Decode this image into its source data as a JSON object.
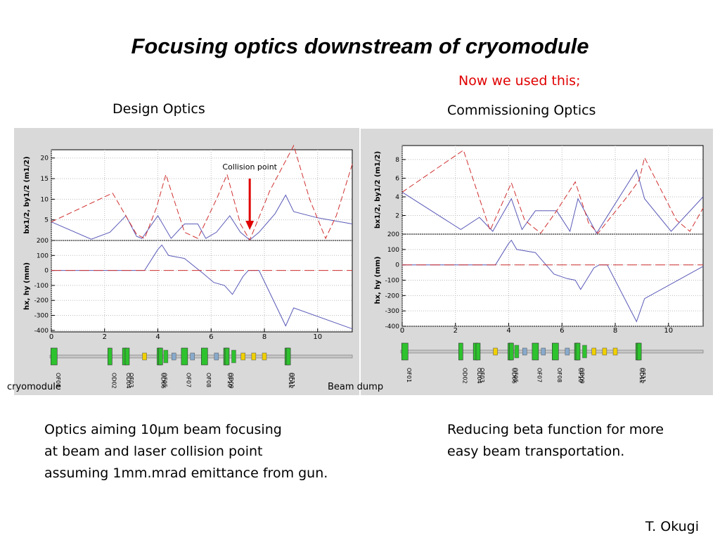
{
  "title": "Focusing optics downstream of cryomodule",
  "note": "Now we used this;",
  "design_label": "Design Optics",
  "commissioning_label": "Commissioning Optics",
  "collision_label": "Collision point",
  "cryomodule_label": "cryomodule",
  "beam_dump_label": "Beam dump",
  "left_text": [
    "Optics aiming 10µm beam focusing",
    "at beam and laser collision point",
    "assuming 1mm.mrad emittance from gun."
  ],
  "right_text": [
    "Reducing beta function for more",
    "easy beam transportation."
  ],
  "author": "T. Okugi",
  "colors": {
    "beta_x": "#5a5ab8",
    "beta_y_dashed": "#d03030",
    "arrow": "#e00000",
    "quad": "#2ec22e",
    "sext": "#f0d000",
    "bpm": "#88aacc"
  },
  "chart_data": [
    {
      "type": "line",
      "name": "Design Optics",
      "xlim": [
        0,
        11.3
      ],
      "xticks": [
        "0",
        "2",
        "4",
        "6",
        "8",
        "10"
      ],
      "grid": true,
      "top": {
        "ylabel": "bx1/2, by1/2 (m1/2)",
        "ylim": [
          0,
          22
        ],
        "yticks": [
          "5",
          "10",
          "15",
          "20"
        ],
        "series": [
          {
            "style": "solid",
            "points": [
              [
                0,
                4.5
              ],
              [
                1.5,
                0.3
              ],
              [
                2.2,
                2
              ],
              [
                2.8,
                6
              ],
              [
                3.2,
                1
              ],
              [
                3.4,
                0.5
              ],
              [
                4,
                6
              ],
              [
                4.5,
                0.5
              ],
              [
                5,
                4
              ],
              [
                5.5,
                4
              ],
              [
                5.8,
                0.5
              ],
              [
                6.2,
                2
              ],
              [
                6.7,
                6
              ],
              [
                7.1,
                2
              ],
              [
                7.45,
                0.1
              ],
              [
                7.8,
                2
              ],
              [
                8.4,
                6.5
              ],
              [
                8.8,
                11
              ],
              [
                9.1,
                7
              ],
              [
                10,
                5.5
              ],
              [
                11.3,
                4
              ]
            ]
          },
          {
            "style": "dashed",
            "points": [
              [
                0,
                4.5
              ],
              [
                2.3,
                11.5
              ],
              [
                3.2,
                1.5
              ],
              [
                3.5,
                0.5
              ],
              [
                3.95,
                8
              ],
              [
                4.3,
                16
              ],
              [
                5,
                2
              ],
              [
                5.5,
                0.5
              ],
              [
                6.2,
                10
              ],
              [
                6.6,
                16
              ],
              [
                7.1,
                4
              ],
              [
                7.45,
                0.1
              ],
              [
                8.2,
                12
              ],
              [
                9.1,
                23
              ],
              [
                9.7,
                10
              ],
              [
                10.3,
                0.5
              ],
              [
                10.7,
                6
              ],
              [
                11.3,
                18.5
              ]
            ]
          }
        ]
      },
      "bottom": {
        "ylabel": "hx, hy (mm)",
        "ylim": [
          -410,
          200
        ],
        "yticks": [
          "200",
          "100",
          "0",
          "-100",
          "-200",
          "-300",
          "-400"
        ],
        "series": [
          {
            "style": "solid",
            "points": [
              [
                0,
                0
              ],
              [
                3.5,
                0
              ],
              [
                4,
                140
              ],
              [
                4.15,
                170
              ],
              [
                4.4,
                100
              ],
              [
                5,
                80
              ],
              [
                5.7,
                -20
              ],
              [
                6.1,
                -80
              ],
              [
                6.5,
                -100
              ],
              [
                6.8,
                -160
              ],
              [
                7.2,
                -40
              ],
              [
                7.4,
                0
              ],
              [
                7.8,
                0
              ],
              [
                8.8,
                -370
              ],
              [
                9.1,
                -250
              ],
              [
                11.3,
                -390
              ]
            ]
          },
          {
            "style": "dashed",
            "points": [
              [
                0,
                0
              ],
              [
                11.3,
                0
              ]
            ]
          }
        ]
      },
      "elements": [
        "OF01",
        "OD02",
        "OD04",
        "OF03",
        "OD06",
        "OF05",
        "OF07",
        "OF08",
        "OF10",
        "OD09",
        "OD12",
        "OF11"
      ]
    },
    {
      "type": "line",
      "name": "Commissioning Optics",
      "xlim": [
        0,
        11.3
      ],
      "xticks": [
        "0",
        "2",
        "4",
        "6",
        "8",
        "10"
      ],
      "grid": true,
      "top": {
        "ylabel": "bx1/2, by1/2 (m1/2)",
        "ylim": [
          0,
          9.5
        ],
        "yticks": [
          "2",
          "4",
          "6",
          "8"
        ],
        "series": [
          {
            "style": "solid",
            "points": [
              [
                0,
                4.5
              ],
              [
                2.2,
                0.5
              ],
              [
                2.9,
                1.8
              ],
              [
                3.4,
                0.3
              ],
              [
                4.1,
                3.8
              ],
              [
                4.5,
                0.5
              ],
              [
                5,
                2.5
              ],
              [
                5.8,
                2.5
              ],
              [
                6.3,
                0.3
              ],
              [
                6.6,
                3.8
              ],
              [
                7.3,
                0.1
              ],
              [
                8.8,
                6.9
              ],
              [
                9.1,
                3.8
              ],
              [
                10.1,
                0.3
              ],
              [
                11.3,
                4
              ]
            ]
          },
          {
            "style": "dashed",
            "points": [
              [
                0,
                4.5
              ],
              [
                2.3,
                9
              ],
              [
                3.3,
                0.4
              ],
              [
                4.1,
                5.5
              ],
              [
                4.6,
                1.5
              ],
              [
                5.2,
                0.1
              ],
              [
                5.8,
                2.5
              ],
              [
                6.5,
                5.6
              ],
              [
                7,
                1.2
              ],
              [
                7.35,
                0.1
              ],
              [
                8.5,
                4.2
              ],
              [
                8.9,
                5.8
              ],
              [
                9.1,
                8.2
              ],
              [
                10.3,
                1.5
              ],
              [
                10.8,
                0.3
              ],
              [
                11.3,
                2.8
              ]
            ]
          }
        ]
      },
      "bottom": {
        "ylabel": "hx, hy (mm)",
        "ylim": [
          -400,
          200
        ],
        "yticks": [
          "200",
          "100",
          "0",
          "-100",
          "-200",
          "-300",
          "-400"
        ],
        "series": [
          {
            "style": "solid",
            "points": [
              [
                0,
                0
              ],
              [
                3.5,
                0
              ],
              [
                4,
                140
              ],
              [
                4.1,
                160
              ],
              [
                4.3,
                100
              ],
              [
                5,
                80
              ],
              [
                5.7,
                -60
              ],
              [
                6.2,
                -90
              ],
              [
                6.5,
                -100
              ],
              [
                6.7,
                -160
              ],
              [
                7.2,
                -20
              ],
              [
                7.4,
                0
              ],
              [
                7.7,
                0
              ],
              [
                8.8,
                -370
              ],
              [
                9.1,
                -220
              ],
              [
                11.3,
                -10
              ]
            ]
          },
          {
            "style": "dashed",
            "points": [
              [
                0,
                0
              ],
              [
                11.3,
                0
              ]
            ]
          }
        ]
      },
      "elements": [
        "OF01",
        "OD02",
        "OD04",
        "OF03",
        "OD06",
        "OF05",
        "OF07",
        "OF08",
        "OF10",
        "OD09",
        "OD12",
        "OF11"
      ]
    }
  ]
}
